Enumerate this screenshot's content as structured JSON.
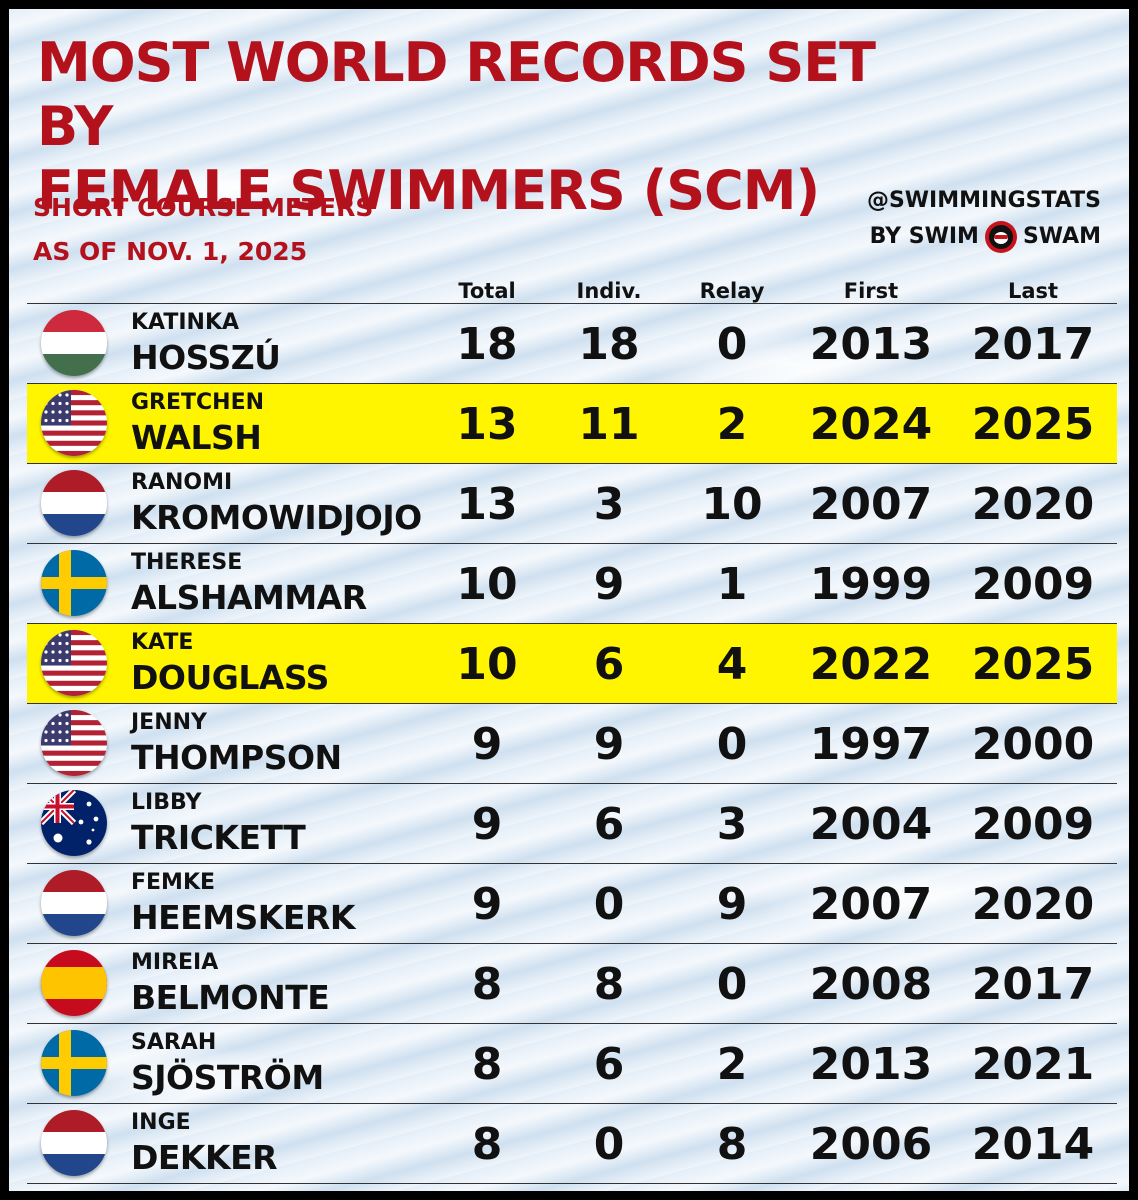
{
  "header": {
    "title_line1": "MOST WORLD RECORDS SET BY",
    "title_line2": "FEMALE SWIMMERS (SCM)",
    "subtitle_line1": "SHORT COURSE METERS",
    "subtitle_line2": "AS OF NOV. 1, 2025",
    "brand_line1": "@SWIMMINGSTATS",
    "brand_by": "BY SWIM",
    "brand_swam": "SWAM"
  },
  "columns": [
    "Total",
    "Indiv.",
    "Relay",
    "First",
    "Last"
  ],
  "colors": {
    "title_red": "#b3121c",
    "highlight": "#fff500"
  },
  "rows": [
    {
      "first": "KATINKA",
      "last": "HOSSZÚ",
      "flag": "hungary-flag-icon",
      "total": "18",
      "indiv": "18",
      "relay": "0",
      "first_year": "2013",
      "last_year": "2017",
      "highlight": false
    },
    {
      "first": "GRETCHEN",
      "last": "WALSH",
      "flag": "usa-flag-icon",
      "total": "13",
      "indiv": "11",
      "relay": "2",
      "first_year": "2024",
      "last_year": "2025",
      "highlight": true
    },
    {
      "first": "RANOMI",
      "last": "KROMOWIDJOJO",
      "flag": "netherlands-flag-icon",
      "total": "13",
      "indiv": "3",
      "relay": "10",
      "first_year": "2007",
      "last_year": "2020",
      "highlight": false
    },
    {
      "first": "THERESE",
      "last": "ALSHAMMAR",
      "flag": "sweden-flag-icon",
      "total": "10",
      "indiv": "9",
      "relay": "1",
      "first_year": "1999",
      "last_year": "2009",
      "highlight": false
    },
    {
      "first": "KATE",
      "last": "DOUGLASS",
      "flag": "usa-flag-icon",
      "total": "10",
      "indiv": "6",
      "relay": "4",
      "first_year": "2022",
      "last_year": "2025",
      "highlight": true
    },
    {
      "first": "JENNY",
      "last": "THOMPSON",
      "flag": "usa-flag-icon",
      "total": "9",
      "indiv": "9",
      "relay": "0",
      "first_year": "1997",
      "last_year": "2000",
      "highlight": false
    },
    {
      "first": "LIBBY",
      "last": "TRICKETT",
      "flag": "australia-flag-icon",
      "total": "9",
      "indiv": "6",
      "relay": "3",
      "first_year": "2004",
      "last_year": "2009",
      "highlight": false
    },
    {
      "first": "FEMKE",
      "last": "HEEMSKERK",
      "flag": "netherlands-flag-icon",
      "total": "9",
      "indiv": "0",
      "relay": "9",
      "first_year": "2007",
      "last_year": "2020",
      "highlight": false
    },
    {
      "first": "MIREIA",
      "last": "BELMONTE",
      "flag": "spain-flag-icon",
      "total": "8",
      "indiv": "8",
      "relay": "0",
      "first_year": "2008",
      "last_year": "2017",
      "highlight": false
    },
    {
      "first": "SARAH",
      "last": "SJÖSTRÖM",
      "flag": "sweden-flag-icon",
      "total": "8",
      "indiv": "6",
      "relay": "2",
      "first_year": "2013",
      "last_year": "2021",
      "highlight": false
    },
    {
      "first": "INGE",
      "last": "DEKKER",
      "flag": "netherlands-flag-icon",
      "total": "8",
      "indiv": "0",
      "relay": "8",
      "first_year": "2006",
      "last_year": "2014",
      "highlight": false
    }
  ]
}
